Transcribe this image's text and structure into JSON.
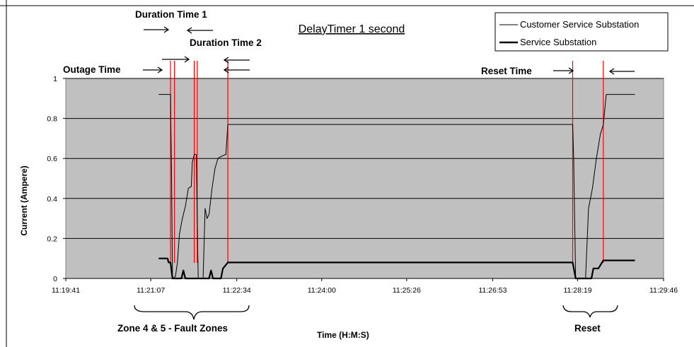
{
  "chart_data": {
    "type": "line",
    "title": "DelayTimer 1 second",
    "xlabel": "Time (H:M:S)",
    "ylabel": "Current  (Ampere)",
    "x_ticks": [
      "11:19:41",
      "11:21:07",
      "11:22:34",
      "11:24:00",
      "11:25:26",
      "11:26:53",
      "11:28:19",
      "11:29:46"
    ],
    "y_ticks": [
      "0",
      "0.2",
      "0.4",
      "0.6",
      "0.8",
      "1"
    ],
    "ylim": [
      0,
      1
    ],
    "xlim": [
      "11:19:41",
      "11:29:46"
    ],
    "grid": "horizontal",
    "plot_background": "#c0c0c0",
    "legend": {
      "placement": "top-right",
      "entries": [
        "Customer Service Substation",
        "Service Substation"
      ]
    },
    "series": [
      {
        "name": "Customer Service Substation",
        "color": "#000000",
        "points": [
          [
            "11:21:15",
            0.92
          ],
          [
            "11:21:27",
            0.92
          ],
          [
            "11:21:28",
            0.55
          ],
          [
            "11:21:29",
            0.0
          ],
          [
            "11:21:32",
            0.01
          ],
          [
            "11:21:34",
            0.08
          ],
          [
            "11:21:36",
            0.22
          ],
          [
            "11:21:39",
            0.3
          ],
          [
            "11:21:42",
            0.36
          ],
          [
            "11:21:45",
            0.45
          ],
          [
            "11:21:48",
            0.46
          ],
          [
            "11:21:49",
            0.58
          ],
          [
            "11:21:51",
            0.62
          ],
          [
            "11:21:53",
            0.62
          ],
          [
            "11:21:55",
            0.0
          ],
          [
            "11:22:00",
            0.0
          ],
          [
            "11:22:02",
            0.35
          ],
          [
            "11:22:04",
            0.3
          ],
          [
            "11:22:06",
            0.32
          ],
          [
            "11:22:09",
            0.45
          ],
          [
            "11:22:12",
            0.55
          ],
          [
            "11:22:15",
            0.6
          ],
          [
            "11:22:18",
            0.61
          ],
          [
            "11:22:23",
            0.62
          ],
          [
            "11:22:25",
            0.77
          ],
          [
            "11:28:14",
            0.77
          ],
          [
            "11:28:15",
            0.6
          ],
          [
            "11:28:17",
            0.0
          ],
          [
            "11:28:27",
            0.0
          ],
          [
            "11:28:30",
            0.35
          ],
          [
            "11:28:34",
            0.45
          ],
          [
            "11:28:38",
            0.6
          ],
          [
            "11:28:42",
            0.72
          ],
          [
            "11:28:45",
            0.77
          ],
          [
            "11:28:48",
            0.92
          ],
          [
            "11:29:17",
            0.92
          ]
        ]
      },
      {
        "name": "Service Substation",
        "color": "#000000",
        "points": [
          [
            "11:21:15",
            0.1
          ],
          [
            "11:21:24",
            0.1
          ],
          [
            "11:21:25",
            0.08
          ],
          [
            "11:21:27",
            0.08
          ],
          [
            "11:21:29",
            0.0
          ],
          [
            "11:21:38",
            0.0
          ],
          [
            "11:21:40",
            0.04
          ],
          [
            "11:21:42",
            0.0
          ],
          [
            "11:22:06",
            0.0
          ],
          [
            "11:22:08",
            0.04
          ],
          [
            "11:22:10",
            0.0
          ],
          [
            "11:22:18",
            0.0
          ],
          [
            "11:22:20",
            0.05
          ],
          [
            "11:22:25",
            0.08
          ],
          [
            "11:28:14",
            0.08
          ],
          [
            "11:28:17",
            0.0
          ],
          [
            "11:28:33",
            0.0
          ],
          [
            "11:28:35",
            0.05
          ],
          [
            "11:28:40",
            0.05
          ],
          [
            "11:28:45",
            0.09
          ],
          [
            "11:29:17",
            0.09
          ]
        ]
      }
    ],
    "annotations": {
      "outage_time": "Outage Time",
      "duration_time_1": "Duration Time 1",
      "duration_time_2": "Duration Time 2",
      "reset_time": "Reset Time",
      "fault_zones": "Zone 4 & 5 - Fault Zones",
      "reset": "Reset"
    },
    "marker_lines": [
      "11:21:27",
      "11:21:31",
      "11:21:51",
      "11:21:54",
      "11:22:25",
      "11:28:14",
      "11:28:45"
    ],
    "marker_color": "#ff0000"
  }
}
